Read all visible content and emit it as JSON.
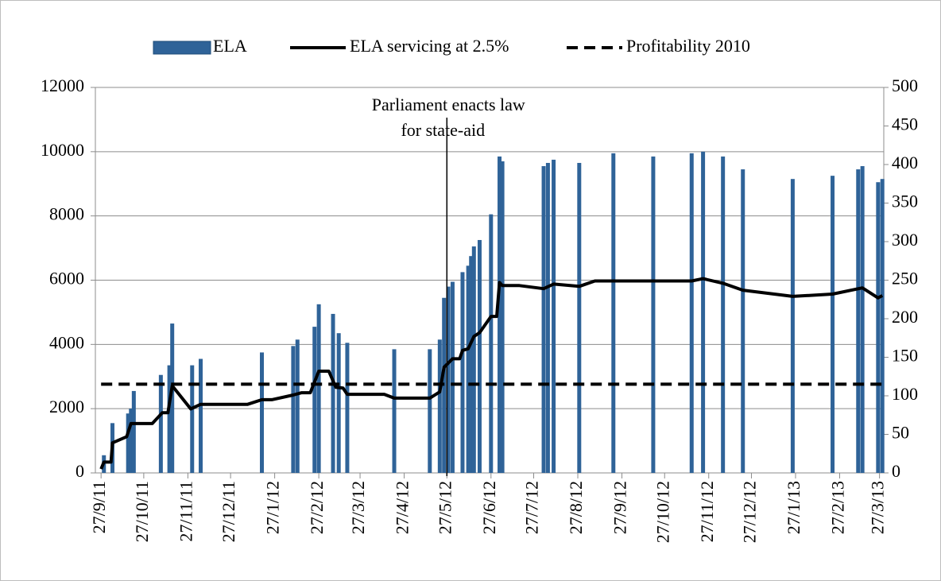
{
  "chart_data": {
    "type": "combo",
    "legend": "top",
    "grid": true,
    "xlim": [
      "2011-09-23",
      "2013-03-30"
    ],
    "xticks": [
      {
        "value": "2011-09-27",
        "label": "27/9/11"
      },
      {
        "value": "2011-10-27",
        "label": "27/10/11"
      },
      {
        "value": "2011-11-27",
        "label": "27/11/11"
      },
      {
        "value": "2011-12-27",
        "label": "27/12/11"
      },
      {
        "value": "2012-01-27",
        "label": "27/1/12"
      },
      {
        "value": "2012-02-27",
        "label": "27/2/12"
      },
      {
        "value": "2012-03-27",
        "label": "27/3/12"
      },
      {
        "value": "2012-04-27",
        "label": "27/4/12"
      },
      {
        "value": "2012-05-27",
        "label": "27/5/12"
      },
      {
        "value": "2012-06-27",
        "label": "27/6/12"
      },
      {
        "value": "2012-07-27",
        "label": "27/7/12"
      },
      {
        "value": "2012-08-27",
        "label": "27/8/12"
      },
      {
        "value": "2012-09-27",
        "label": "27/9/12"
      },
      {
        "value": "2012-10-27",
        "label": "27/10/12"
      },
      {
        "value": "2012-11-27",
        "label": "27/11/12"
      },
      {
        "value": "2012-12-27",
        "label": "27/12/12"
      },
      {
        "value": "2013-01-27",
        "label": "27/1/13"
      },
      {
        "value": "2013-02-27",
        "label": "27/2/13"
      },
      {
        "value": "2013-03-27",
        "label": "27/3/13"
      }
    ],
    "ylim": [
      0,
      12000
    ],
    "yticks": [
      0,
      2000,
      4000,
      6000,
      8000,
      10000,
      12000
    ],
    "y2lim": [
      0,
      500
    ],
    "y2ticks": [
      0,
      50,
      100,
      150,
      200,
      250,
      300,
      350,
      400,
      450,
      500
    ],
    "annotation": {
      "text": [
        "Parliament enacts law",
        "for state-aid"
      ],
      "x": "2012-05-27"
    },
    "series": [
      {
        "name": "ELA",
        "type": "bar",
        "color": "#2f6398",
        "x": [
          "2011-09-29",
          "2011-10-05",
          "2011-10-16",
          "2011-10-18",
          "2011-10-20",
          "2011-11-08",
          "2011-11-14",
          "2011-11-16",
          "2011-11-30",
          "2011-12-06",
          "2012-01-18",
          "2012-02-09",
          "2012-02-12",
          "2012-02-24",
          "2012-02-27",
          "2012-03-08",
          "2012-03-12",
          "2012-03-18",
          "2012-04-20",
          "2012-05-15",
          "2012-05-22",
          "2012-05-25",
          "2012-05-28",
          "2012-05-31",
          "2012-06-07",
          "2012-06-11",
          "2012-06-13",
          "2012-06-15",
          "2012-06-19",
          "2012-06-27",
          "2012-07-03",
          "2012-07-05",
          "2012-08-03",
          "2012-08-06",
          "2012-08-10",
          "2012-08-28",
          "2012-09-21",
          "2012-10-19",
          "2012-11-15",
          "2012-11-23",
          "2012-12-07",
          "2012-12-21",
          "2013-01-25",
          "2013-02-22",
          "2013-03-12",
          "2013-03-15",
          "2013-03-26",
          "2013-03-29"
        ],
        "values": [
          550,
          1550,
          1850,
          2000,
          2550,
          3050,
          3350,
          4650,
          3350,
          3550,
          3750,
          3950,
          4150,
          4550,
          5250,
          4950,
          4350,
          4050,
          3850,
          3850,
          4150,
          5450,
          5800,
          5950,
          6250,
          6450,
          6750,
          7050,
          7250,
          8050,
          9850,
          9700,
          9550,
          9650,
          9750,
          9650,
          9950,
          9850,
          9950,
          10000,
          9850,
          9450,
          9150,
          9250,
          9450,
          9550,
          9050,
          9150
        ]
      },
      {
        "name": "ELA servicing at 2.5%",
        "type": "line",
        "axis": "y2",
        "color": "#000000",
        "dashed": false,
        "x": [
          "2011-09-27",
          "2011-09-29",
          "2011-10-04",
          "2011-10-05",
          "2011-10-15",
          "2011-10-18",
          "2011-11-02",
          "2011-11-09",
          "2011-11-13",
          "2011-11-16",
          "2011-11-29",
          "2011-12-06",
          "2012-01-08",
          "2012-01-18",
          "2012-01-25",
          "2012-02-09",
          "2012-02-15",
          "2012-02-21",
          "2012-02-27",
          "2012-03-05",
          "2012-03-10",
          "2012-03-15",
          "2012-03-18",
          "2012-04-13",
          "2012-04-20",
          "2012-05-15",
          "2012-05-22",
          "2012-05-25",
          "2012-05-31",
          "2012-06-05",
          "2012-06-07",
          "2012-06-11",
          "2012-06-15",
          "2012-06-19",
          "2012-06-27",
          "2012-07-01",
          "2012-07-03",
          "2012-07-05",
          "2012-07-17",
          "2012-08-03",
          "2012-08-10",
          "2012-08-28",
          "2012-09-08",
          "2012-09-21",
          "2012-10-19",
          "2012-11-15",
          "2012-11-23",
          "2012-12-07",
          "2012-12-21",
          "2013-01-25",
          "2013-02-22",
          "2013-03-15",
          "2013-03-26",
          "2013-03-29"
        ],
        "values": [
          5,
          14,
          14,
          39,
          47,
          64,
          64,
          78,
          78,
          113,
          83,
          89,
          89,
          95,
          95,
          101,
          104,
          104,
          132,
          132,
          111,
          110,
          102,
          102,
          97,
          97,
          105,
          137,
          148,
          148,
          159,
          161,
          177,
          182,
          203,
          203,
          247,
          243,
          243,
          239,
          245,
          242,
          249,
          249,
          249,
          249,
          252,
          246,
          237,
          229,
          232,
          240,
          227,
          230
        ]
      },
      {
        "name": "Profitability 2010",
        "type": "line",
        "axis": "y2",
        "color": "#000000",
        "dashed": true,
        "x": [
          "2011-09-27",
          "2013-03-29"
        ],
        "values": [
          115,
          115
        ]
      }
    ]
  }
}
